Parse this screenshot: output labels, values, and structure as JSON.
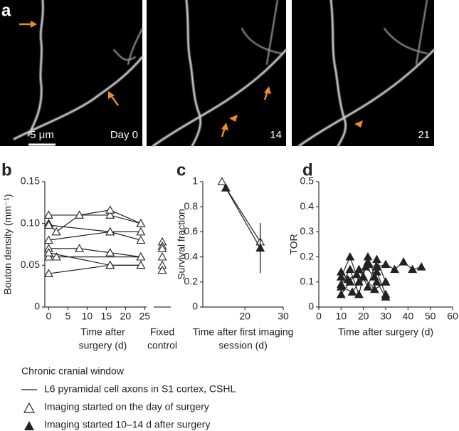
{
  "panel_labels": [
    "a",
    "b",
    "c",
    "d"
  ],
  "images": [
    {
      "label": "Day 0"
    },
    {
      "label": "14"
    },
    {
      "label": "21"
    }
  ],
  "scale_bar": "5 μm",
  "chart_data": [
    {
      "type": "line",
      "y_label": "Bouton density (mm⁻¹)",
      "x_label": [
        "Time after",
        "surgery (d)"
      ],
      "xlim": [
        -1,
        25.5
      ],
      "xticks": [
        0,
        5,
        10,
        15,
        20,
        25
      ],
      "ylim": [
        0,
        0.15
      ],
      "yticks": [
        0,
        0.05,
        {
          "value": 0.1,
          "label": "0.10"
        },
        0.15
      ],
      "marker": "open-triangle",
      "series": [
        {
          "x": [
            0,
            16,
            24
          ],
          "values": [
            0.11,
            0.11,
            0.1
          ]
        },
        {
          "x": [
            0,
            2,
            8,
            16,
            24
          ],
          "values": [
            0.1,
            0.09,
            0.11,
            0.116,
            0.1
          ]
        },
        {
          "x": [
            0,
            16,
            24
          ],
          "values": [
            0.098,
            0.09,
            0.08
          ]
        },
        {
          "x": [
            0,
            16,
            24
          ],
          "values": [
            0.08,
            0.09,
            0.09
          ]
        },
        {
          "x": [
            0,
            8,
            16,
            24
          ],
          "values": [
            0.07,
            0.07,
            0.065,
            0.06
          ]
        },
        {
          "x": [
            0,
            2,
            24
          ],
          "values": [
            0.06,
            0.06,
            0.06
          ]
        },
        {
          "x": [
            0,
            16,
            24
          ],
          "values": [
            0.065,
            0.05,
            0.05
          ]
        },
        {
          "x": [
            0,
            16,
            24
          ],
          "values": [
            0.04,
            0.05,
            0.05
          ]
        }
      ],
      "fixed_control": {
        "label": [
          "Fixed",
          "control"
        ],
        "values": [
          0.078,
          0.073,
          0.07,
          0.06,
          0.05,
          0.044
        ]
      }
    },
    {
      "type": "line",
      "y_label": "Survival fraction",
      "x_label": [
        "Time after first imaging",
        "session (d)"
      ],
      "xlim": [
        9,
        30
      ],
      "xticks": [
        20,
        30
      ],
      "ylim": [
        0,
        1
      ],
      "yticks": [
        0,
        0.2,
        0.4,
        0.6,
        0.8,
        1
      ],
      "series": [
        {
          "marker": "open-triangle",
          "x": [
            14,
            24
          ],
          "values": [
            1,
            0.52
          ]
        },
        {
          "marker": "filled-triangle",
          "x": [
            15,
            24
          ],
          "values": [
            0.95,
            0.47
          ],
          "errors": [
            null,
            0.2
          ]
        }
      ]
    },
    {
      "type": "line",
      "y_label": "TOR",
      "x_label": [
        "Time after surgery (d)"
      ],
      "xlim": [
        0,
        60
      ],
      "xticks": [
        0,
        10,
        20,
        30,
        40,
        50,
        60
      ],
      "ylim": [
        0,
        0.5
      ],
      "yticks": [
        0,
        0.1,
        0.2,
        0.3,
        0.4,
        0.5
      ],
      "marker": "filled-triangle",
      "series": [
        {
          "x": [
            10,
            14,
            18,
            22,
            26,
            30
          ],
          "values": [
            0.12,
            0.2,
            0.1,
            0.18,
            0.14,
            0.05
          ]
        },
        {
          "x": [
            10,
            14,
            18,
            22,
            26,
            30
          ],
          "values": [
            0.05,
            0.1,
            0.15,
            0.08,
            0.19,
            0.1
          ]
        },
        {
          "x": [
            10,
            14,
            18,
            22,
            26,
            30
          ],
          "values": [
            0.09,
            0.15,
            0.05,
            0.2,
            0.1,
            0.04
          ]
        },
        {
          "x": [
            22,
            26,
            30,
            34,
            38,
            42,
            46
          ],
          "values": [
            0.17,
            0.16,
            0.17,
            0.15,
            0.18,
            0.15,
            0.16
          ]
        },
        {
          "x": [
            10,
            15,
            20,
            25,
            30
          ],
          "values": [
            0.08,
            0.06,
            0.12,
            0.07,
            0.1
          ]
        },
        {
          "x": [
            10,
            13,
            17,
            21,
            25
          ],
          "values": [
            0.14,
            0.11,
            0.13,
            0.16,
            0.12
          ]
        }
      ]
    }
  ],
  "legend": {
    "title": "Chronic cranial window",
    "items": [
      "L6 pyramidal cell axons in S1 cortex, CSHL",
      "Imaging started on the day of surgery",
      "Imaging started 10–14 d after surgery"
    ]
  }
}
